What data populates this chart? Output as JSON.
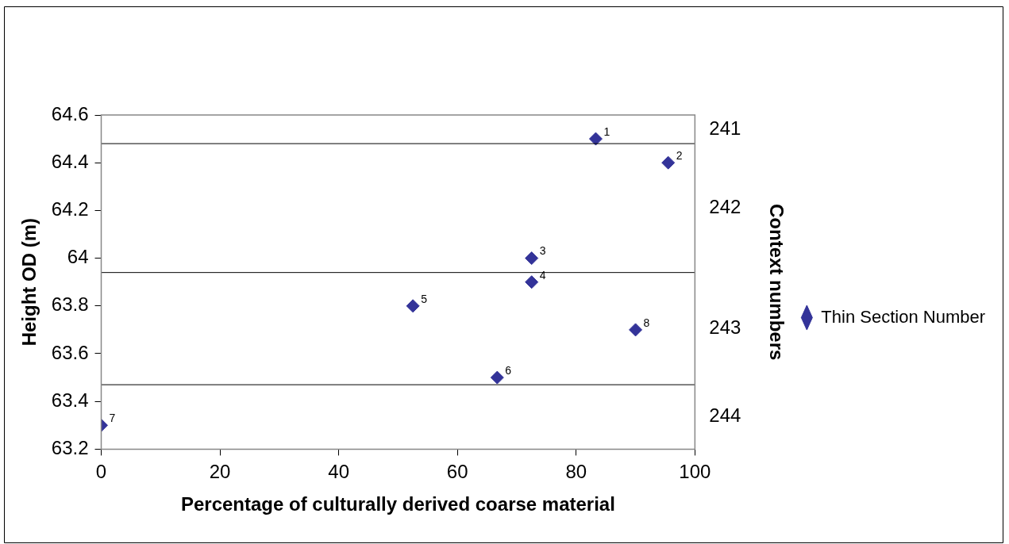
{
  "chart_data": {
    "type": "scatter",
    "xlabel": "Percentage of culturally derived coarse material",
    "ylabel": "Height OD (m)",
    "y2label": "Context numbers",
    "xlim": [
      0,
      100
    ],
    "xticks": [
      0,
      20,
      40,
      60,
      80,
      100
    ],
    "ylim": [
      63.2,
      64.6
    ],
    "yticks": [
      63.2,
      63.4,
      63.6,
      63.8,
      64,
      64.2,
      64.4,
      64.6
    ],
    "series": [
      {
        "name": "Thin Section Number",
        "color": "#333399",
        "x": [
          83.3,
          95.5,
          72.5,
          72.5,
          52.5,
          66.7,
          0,
          90
        ],
        "values": [
          64.5,
          64.4,
          64,
          63.9,
          63.8,
          63.5,
          63.3,
          63.7
        ]
      }
    ],
    "annotations": [
      {
        "text": "1",
        "x": 83.3,
        "y": 64.5
      },
      {
        "text": "2",
        "x": 95.5,
        "y": 64.4
      },
      {
        "text": "3",
        "x": 72.5,
        "y": 64
      },
      {
        "text": "4",
        "x": 72.5,
        "y": 63.9
      },
      {
        "text": "5",
        "x": 52.5,
        "y": 63.8
      },
      {
        "text": "6",
        "x": 66.7,
        "y": 63.5
      },
      {
        "text": "7",
        "x": 0,
        "y": 63.3
      },
      {
        "text": "8",
        "x": 90,
        "y": 63.7
      },
      "241",
      "242",
      "243",
      "244"
    ],
    "ref_lines": [
      {
        "axis": "y",
        "value": 64.48,
        "color": "#000000"
      },
      {
        "axis": "y",
        "value": 63.94,
        "color": "#000000"
      },
      {
        "axis": "y",
        "value": 63.47,
        "color": "#000000"
      }
    ],
    "grid": false,
    "legend": "right",
    "marker": "diamond"
  }
}
